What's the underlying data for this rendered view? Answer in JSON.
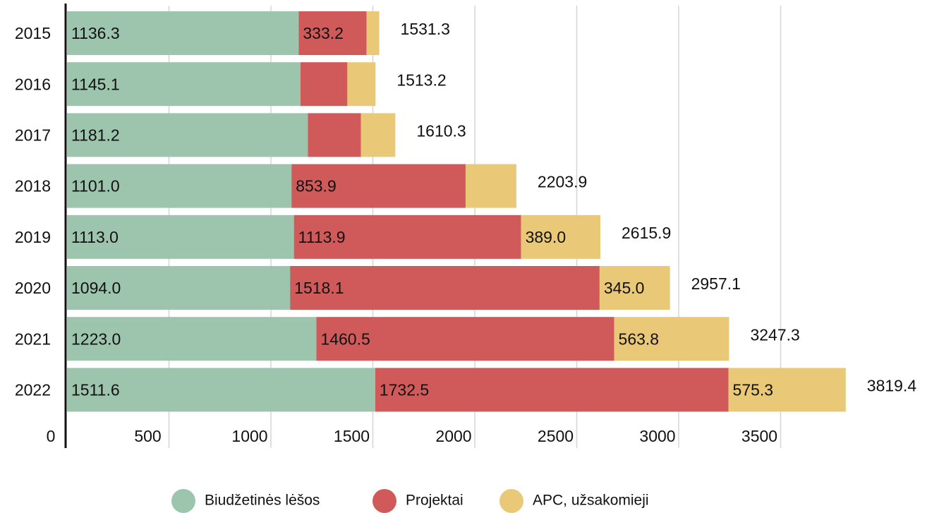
{
  "chart_data": {
    "type": "bar",
    "orientation": "horizontal",
    "stacked": true,
    "categories": [
      "2015",
      "2016",
      "2017",
      "2018",
      "2019",
      "2020",
      "2021",
      "2022"
    ],
    "series": [
      {
        "name": "Biudžetinės lėšos",
        "color": "#9dc5ad",
        "label_color": "#222",
        "values": [
          1136.3,
          1145.1,
          1181.2,
          1101.0,
          1113.0,
          1094.0,
          1223.0,
          1511.6
        ],
        "value_labels": [
          "1136.3",
          "1145.1",
          "1181.2",
          "1101.0",
          "1113.0",
          "1094.0",
          "1223.0",
          "1511.6"
        ]
      },
      {
        "name": "Projektai",
        "color": "#d05a5a",
        "label_color": "#fff",
        "values": [
          333.2,
          230,
          260,
          853.9,
          1113.9,
          1518.1,
          1460.5,
          1732.5
        ],
        "value_labels": [
          "333.2",
          null,
          null,
          "853.9",
          "1113.9",
          "1518.1",
          "1460.5",
          "1732.5"
        ]
      },
      {
        "name": "APC, užsakomieji",
        "color": "#e9c877",
        "label_color": "#222",
        "values": [
          61.8,
          138.1,
          169.1,
          249.0,
          389.0,
          345.0,
          563.8,
          575.3
        ],
        "value_labels": [
          null,
          null,
          null,
          null,
          "389.0",
          "345.0",
          "563.8",
          "575.3"
        ]
      }
    ],
    "totals": [
      1531.3,
      1513.2,
      1610.3,
      2203.9,
      2615.9,
      2957.1,
      3247.3,
      3819.4
    ],
    "total_labels": [
      "1531.3",
      "1513.2",
      "1610.3",
      "2203.9",
      "2615.9",
      "2957.1",
      "3247.3",
      "3819.4"
    ],
    "xlim": [
      0,
      4000
    ],
    "xticks": [
      0,
      500,
      1000,
      1500,
      2000,
      2500,
      3000,
      3500
    ],
    "grid": true,
    "legend": "bottom"
  }
}
